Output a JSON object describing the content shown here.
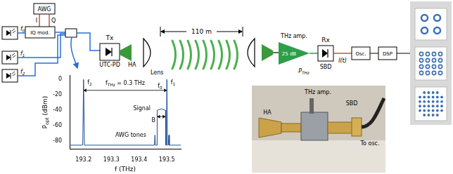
{
  "diagram": {
    "awg": "AWG",
    "iq_inputs": [
      "I",
      "Q"
    ],
    "modulator": "IQ mod.",
    "lasers": [
      [
        {
          "t": "f"
        },
        {
          "t": "0",
          "sub": true
        }
      ],
      [
        {
          "t": "f"
        },
        {
          "t": "1",
          "sub": true
        }
      ],
      [
        {
          "t": "f"
        },
        {
          "t": "2",
          "sub": true
        }
      ]
    ],
    "transmitter": {
      "label": "Tx",
      "photodiode": "UTC-PD",
      "antenna": "HA",
      "lens": "Lens"
    },
    "distance": "110 m",
    "receiver": {
      "amplifier": "THz amp.",
      "gain": "25 dB",
      "power": [
        {
          "t": "P"
        },
        {
          "t": "THz",
          "sub": true
        }
      ],
      "label": "Rx",
      "detector": "SBD",
      "output": "I(t)"
    },
    "oscilloscope": "Osc.",
    "dsp": "DSP",
    "photo_labels": [
      "HA",
      "THz amp.",
      "SBD",
      "To osc."
    ]
  },
  "chart_data": {
    "type": "line",
    "x_label": "f (THz)",
    "y_label": [
      {
        "t": "P"
      },
      {
        "t": "opt",
        "sub": true
      },
      {
        "t": " (dBm)"
      }
    ],
    "x": [
      193.15,
      193.197,
      193.2,
      193.203,
      193.455,
      193.457,
      193.459,
      193.464,
      193.465,
      193.48,
      193.495,
      193.496,
      193.498,
      193.5,
      193.502,
      193.505,
      193.507,
      193.509,
      193.55
    ],
    "values": [
      -85,
      -85,
      0,
      -85,
      -85,
      -72,
      -85,
      -85,
      -40,
      -38,
      -40,
      -85,
      -85,
      0,
      -85,
      -85,
      -72,
      -85,
      -85
    ],
    "color": "#1f4e9c",
    "xlim": [
      193.15,
      193.55
    ],
    "xticks": [
      193.2,
      193.3,
      193.4,
      193.5
    ],
    "ylim": [
      -90,
      5
    ],
    "yticks": [
      -80,
      -60,
      -40,
      -20,
      0
    ],
    "grid": false,
    "annotations": [
      {
        "text": [
          {
            "t": "f"
          },
          {
            "t": "2",
            "sub": true
          }
        ],
        "x": 193.222,
        "y": -4
      },
      {
        "text": [
          {
            "t": "f"
          },
          {
            "t": "0",
            "sub": true
          }
        ],
        "x": 193.475,
        "y": -9
      },
      {
        "text": [
          {
            "t": "f"
          },
          {
            "t": "1",
            "sub": true
          }
        ],
        "x": 193.522,
        "y": -4
      },
      {
        "text": [
          {
            "t": "f"
          },
          {
            "t": "THz",
            "sub": true
          },
          {
            "t": " = 0.3 THz"
          }
        ],
        "x": 193.35,
        "y": -5
      },
      {
        "text": "Signal",
        "x": 193.41,
        "y": -38
      },
      {
        "text": "B",
        "x": 193.452,
        "y": -53
      },
      {
        "text": "AWG tones",
        "x": 193.37,
        "y": -72
      }
    ],
    "arrows": [
      {
        "from": 193.2,
        "to": 193.5,
        "y": -14
      },
      {
        "from": 193.465,
        "to": 193.495,
        "y": -48
      }
    ]
  }
}
